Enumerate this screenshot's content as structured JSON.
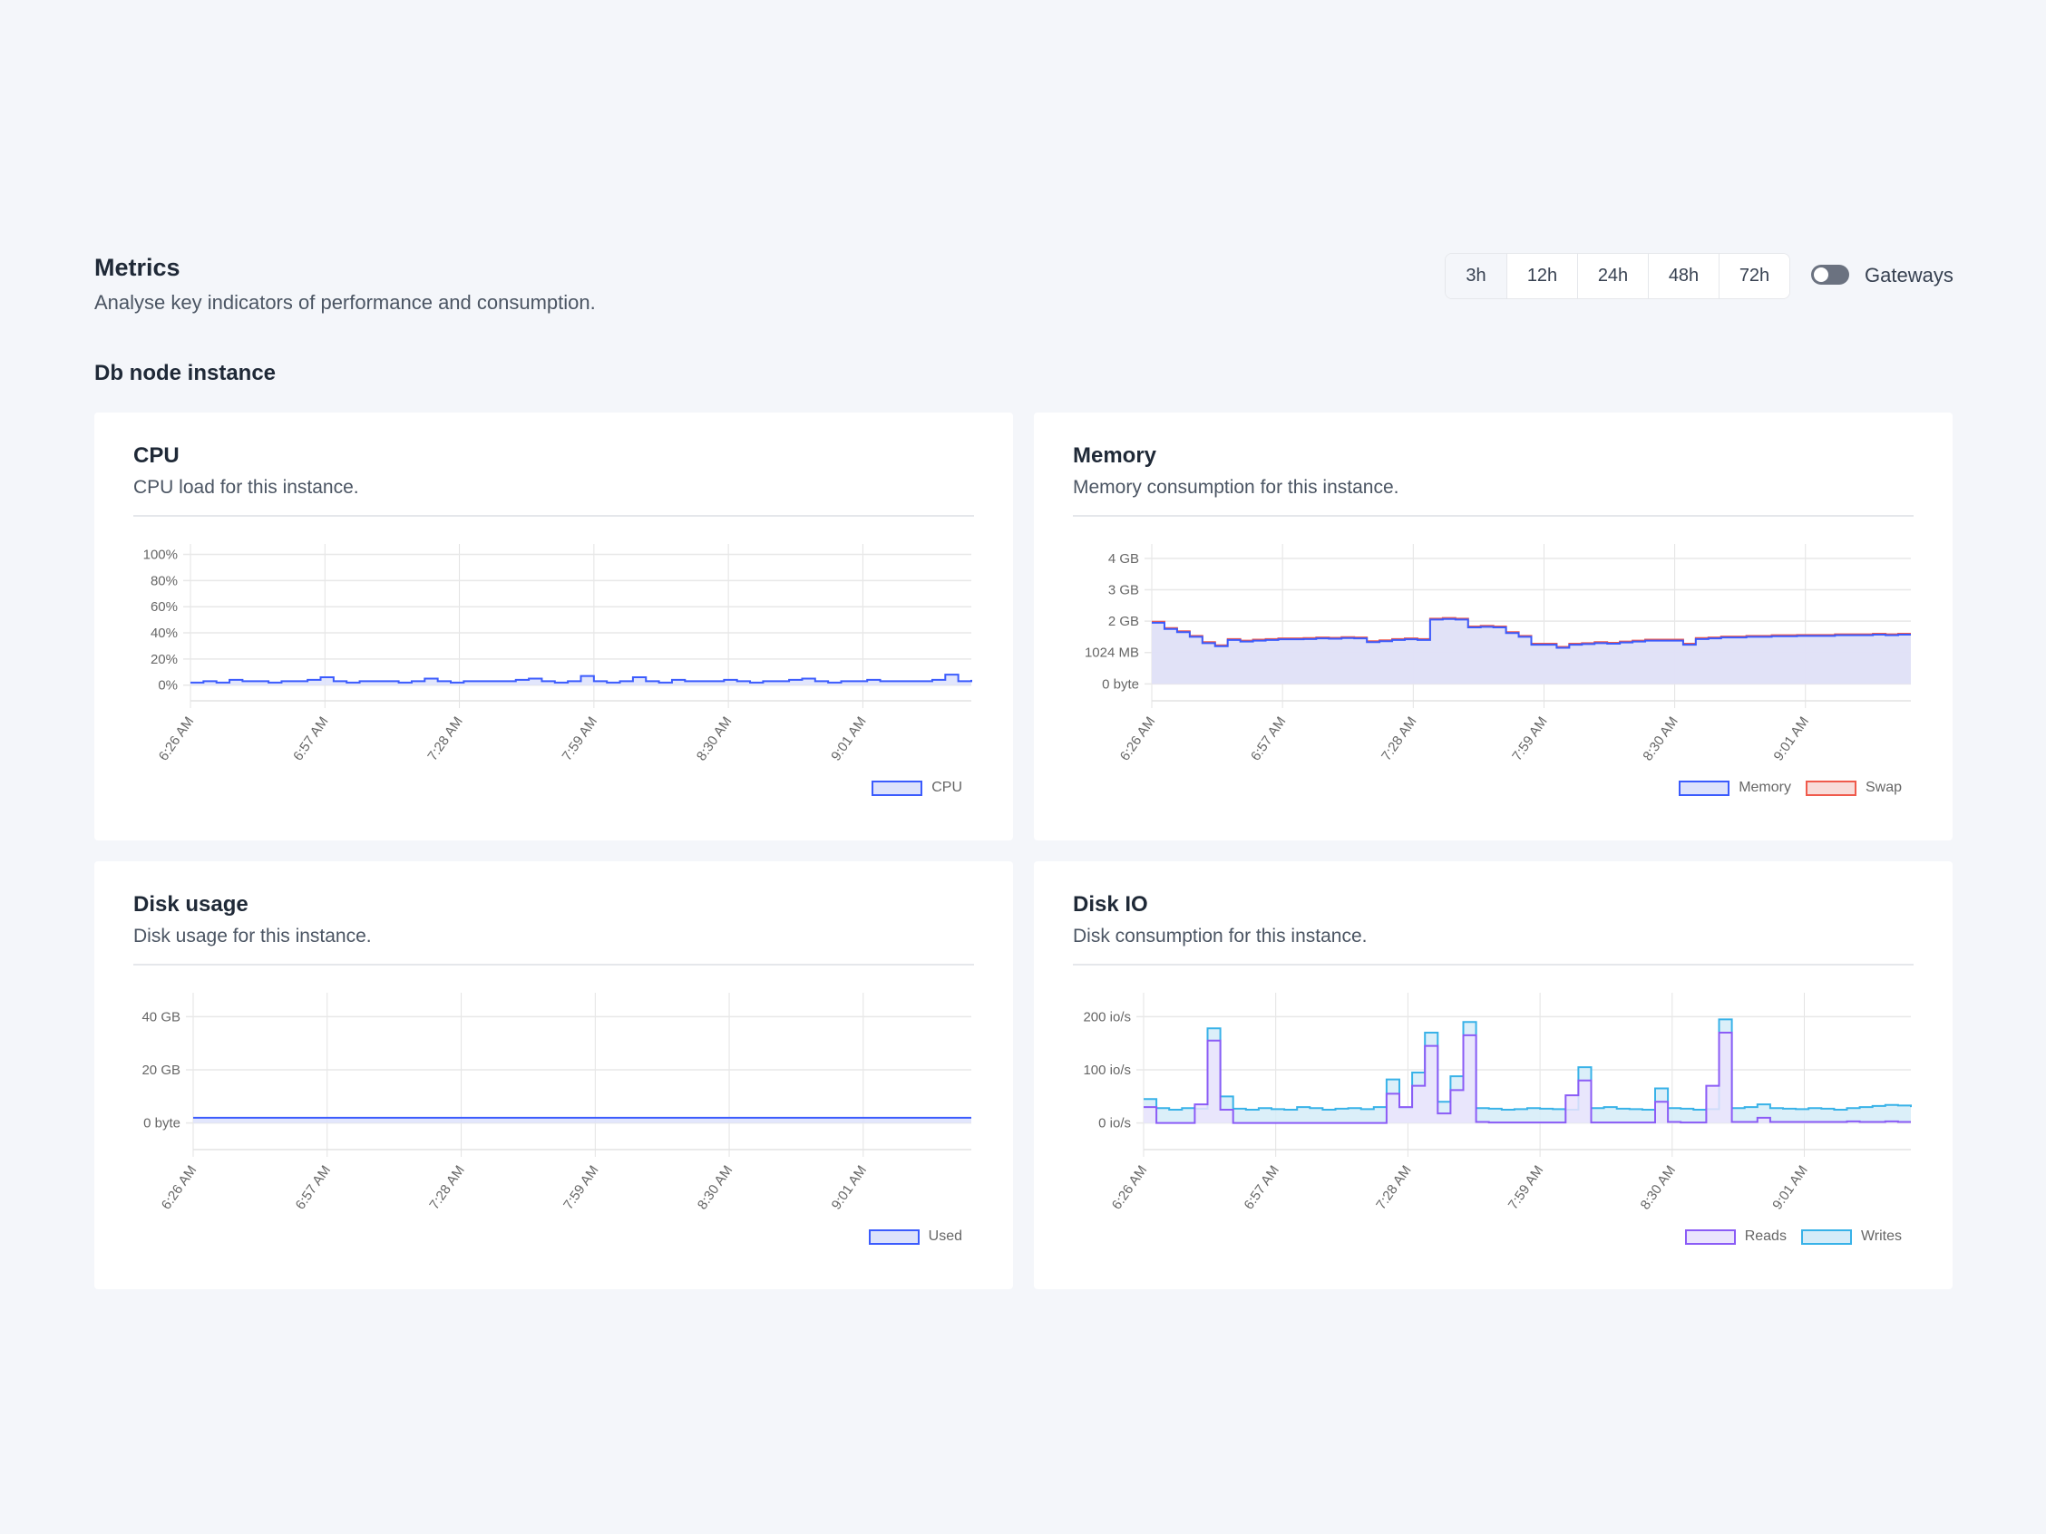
{
  "header": {
    "title": "Metrics",
    "subtitle": "Analyse key indicators of performance and consumption."
  },
  "range": {
    "options": [
      "3h",
      "12h",
      "24h",
      "48h",
      "72h"
    ],
    "selected": "3h"
  },
  "gateways": {
    "label": "Gateways",
    "enabled": false
  },
  "section": {
    "title": "Db node instance"
  },
  "x_ticks": [
    "6:26 AM",
    "6:57 AM",
    "7:28 AM",
    "7:59 AM",
    "8:30 AM",
    "9:01 AM"
  ],
  "chart_data": [
    {
      "id": "cpu",
      "type": "area",
      "title": "CPU",
      "subtitle": "CPU load for this instance.",
      "x_minutes_step": 3,
      "x_range_minutes": [
        0,
        180
      ],
      "tick_minutes": [
        0,
        31,
        62,
        93,
        124,
        155
      ],
      "yticks": [
        {
          "v": 100,
          "l": "100%"
        },
        {
          "v": 80,
          "l": "80%"
        },
        {
          "v": 60,
          "l": "60%"
        },
        {
          "v": 40,
          "l": "40%"
        },
        {
          "v": 20,
          "l": "20%"
        },
        {
          "v": 0,
          "l": "0%"
        }
      ],
      "ylim": [
        -12,
        108
      ],
      "series": [
        {
          "name": "CPU",
          "stroke": "#3b5bfd",
          "fill": "#dde2fb",
          "values": [
            2,
            3,
            2,
            4,
            3,
            3,
            2,
            3,
            3,
            4,
            6,
            3,
            2,
            3,
            3,
            3,
            2,
            3,
            5,
            3,
            2,
            3,
            3,
            3,
            3,
            4,
            5,
            3,
            2,
            3,
            7,
            3,
            2,
            3,
            6,
            3,
            2,
            4,
            3,
            3,
            3,
            4,
            3,
            2,
            3,
            3,
            4,
            5,
            3,
            2,
            3,
            3,
            4,
            3,
            3,
            3,
            3,
            4,
            8,
            3,
            4
          ]
        }
      ]
    },
    {
      "id": "memory",
      "type": "area",
      "title": "Memory",
      "subtitle": "Memory consumption for this instance.",
      "x_minutes_step": 3,
      "x_range_minutes": [
        0,
        180
      ],
      "tick_minutes": [
        0,
        31,
        62,
        93,
        124,
        155
      ],
      "yticks": [
        {
          "v": 4,
          "l": "4 GB"
        },
        {
          "v": 3,
          "l": "3 GB"
        },
        {
          "v": 2,
          "l": "2 GB"
        },
        {
          "v": 1,
          "l": "1024 MB"
        },
        {
          "v": 0,
          "l": "0 byte"
        }
      ],
      "ylim": [
        -0.54,
        4.46
      ],
      "series": [
        {
          "name": "Swap",
          "stroke": "#ef5a4c",
          "fill": "#f8dcd9",
          "stacked": true,
          "values": [
            0.03,
            0.03,
            0.03,
            0.03,
            0.03,
            0.03,
            0.03,
            0.03,
            0.03,
            0.03,
            0.03,
            0.03,
            0.03,
            0.03,
            0.03,
            0.03,
            0.03,
            0.03,
            0.03,
            0.03,
            0.03,
            0.03,
            0.03,
            0.03,
            0.03,
            0.03,
            0.03,
            0.03,
            0.03,
            0.03,
            0.03,
            0.03,
            0.03,
            0.03,
            0.03,
            0.03,
            0.03,
            0.03,
            0.03,
            0.03,
            0.03,
            0.03,
            0.03,
            0.03,
            0.03,
            0.03,
            0.03,
            0.03,
            0.03,
            0.03,
            0.03,
            0.03,
            0.03,
            0.03,
            0.03,
            0.03,
            0.03,
            0.03,
            0.03,
            0.03,
            0.03
          ]
        },
        {
          "name": "Memory",
          "stroke": "#3b5bfd",
          "fill": "#dde2fb",
          "values": [
            1.95,
            1.75,
            1.65,
            1.5,
            1.3,
            1.2,
            1.4,
            1.35,
            1.38,
            1.4,
            1.42,
            1.42,
            1.43,
            1.45,
            1.44,
            1.46,
            1.45,
            1.33,
            1.36,
            1.4,
            1.42,
            1.4,
            2.05,
            2.07,
            2.05,
            1.8,
            1.82,
            1.8,
            1.62,
            1.5,
            1.25,
            1.25,
            1.15,
            1.25,
            1.27,
            1.3,
            1.28,
            1.32,
            1.35,
            1.38,
            1.38,
            1.38,
            1.25,
            1.43,
            1.45,
            1.48,
            1.48,
            1.5,
            1.5,
            1.52,
            1.52,
            1.53,
            1.53,
            1.53,
            1.55,
            1.55,
            1.55,
            1.57,
            1.55,
            1.57,
            1.57
          ]
        }
      ],
      "legend_order": [
        "Memory",
        "Swap"
      ]
    },
    {
      "id": "disk-usage",
      "type": "area",
      "title": "Disk usage",
      "subtitle": "Disk usage for this instance.",
      "x_minutes_step": 3,
      "x_range_minutes": [
        0,
        180
      ],
      "tick_minutes": [
        0,
        31,
        62,
        93,
        124,
        155
      ],
      "yticks": [
        {
          "v": 40,
          "l": "40 GB"
        },
        {
          "v": 20,
          "l": "20 GB"
        },
        {
          "v": 0,
          "l": "0 byte"
        }
      ],
      "ylim": [
        -10,
        49
      ],
      "series": [
        {
          "name": "Used",
          "stroke": "#3b5bfd",
          "fill": "#dde2fb",
          "values": [
            2,
            2,
            2,
            2,
            2,
            2,
            2,
            2,
            2,
            2,
            2,
            2,
            2,
            2,
            2,
            2,
            2,
            2,
            2,
            2,
            2,
            2,
            2,
            2,
            2,
            2,
            2,
            2,
            2,
            2,
            2,
            2,
            2,
            2,
            2,
            2,
            2,
            2,
            2,
            2,
            2,
            2,
            2,
            2,
            2,
            2,
            2,
            2,
            2,
            2,
            2,
            2,
            2,
            2,
            2,
            2,
            2,
            2,
            2,
            2,
            2
          ]
        }
      ]
    },
    {
      "id": "disk-io",
      "type": "area",
      "title": "Disk IO",
      "subtitle": "Disk consumption for this instance.",
      "x_minutes_step": 3,
      "x_range_minutes": [
        0,
        180
      ],
      "tick_minutes": [
        0,
        31,
        62,
        93,
        124,
        155
      ],
      "yticks": [
        {
          "v": 200,
          "l": "200 io/s"
        },
        {
          "v": 100,
          "l": "100 io/s"
        },
        {
          "v": 0,
          "l": "0 io/s"
        }
      ],
      "ylim": [
        -50,
        245
      ],
      "series": [
        {
          "name": "Writes",
          "stroke": "#38b2e8",
          "fill": "#d5ecf8",
          "values": [
            45,
            28,
            25,
            28,
            27,
            178,
            50,
            27,
            25,
            28,
            26,
            25,
            30,
            28,
            25,
            27,
            28,
            26,
            30,
            82,
            28,
            95,
            170,
            40,
            88,
            190,
            28,
            27,
            25,
            26,
            28,
            27,
            26,
            25,
            105,
            28,
            30,
            27,
            26,
            25,
            65,
            28,
            27,
            25,
            26,
            195,
            28,
            30,
            35,
            28,
            27,
            26,
            28,
            27,
            25,
            28,
            30,
            32,
            34,
            33,
            30
          ]
        },
        {
          "name": "Reads",
          "stroke": "#8b5cf6",
          "fill": "#ebe4fd",
          "values": [
            30,
            0,
            0,
            0,
            35,
            155,
            25,
            0,
            0,
            0,
            0,
            0,
            0,
            0,
            0,
            0,
            0,
            0,
            0,
            55,
            30,
            70,
            145,
            18,
            62,
            165,
            2,
            1,
            1,
            1,
            1,
            1,
            1,
            52,
            80,
            1,
            1,
            1,
            1,
            1,
            40,
            2,
            1,
            1,
            70,
            170,
            2,
            2,
            10,
            2,
            2,
            2,
            2,
            2,
            2,
            3,
            2,
            2,
            3,
            2,
            2
          ]
        }
      ],
      "legend_order": [
        "Reads",
        "Writes"
      ]
    }
  ]
}
